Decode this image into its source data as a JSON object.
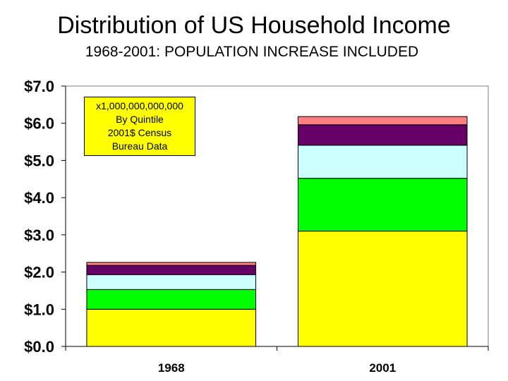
{
  "chart_data": {
    "type": "bar",
    "stacked": true,
    "title": "Distribution of US Household Income",
    "subtitle": "1968-2001: POPULATION INCREASE INCLUDED",
    "categories": [
      "1968",
      "2001"
    ],
    "series": [
      {
        "color": "#ffff00",
        "values": [
          1.0,
          3.1
        ]
      },
      {
        "color": "#00ff00",
        "values": [
          0.53,
          1.42
        ]
      },
      {
        "color": "#ccffff",
        "values": [
          0.4,
          0.89
        ]
      },
      {
        "color": "#660066",
        "values": [
          0.25,
          0.55
        ]
      },
      {
        "color": "#ff8080",
        "values": [
          0.08,
          0.22
        ]
      }
    ],
    "ylim": [
      0,
      7
    ],
    "yticks": [
      "$0.0",
      "$1.0",
      "$2.0",
      "$3.0",
      "$4.0",
      "$5.0",
      "$6.0",
      "$7.0"
    ],
    "grid": false,
    "annotation": [
      "x1,000,000,000,000",
      "By Quintile",
      "2001$ Census",
      "Bureau Data"
    ]
  }
}
